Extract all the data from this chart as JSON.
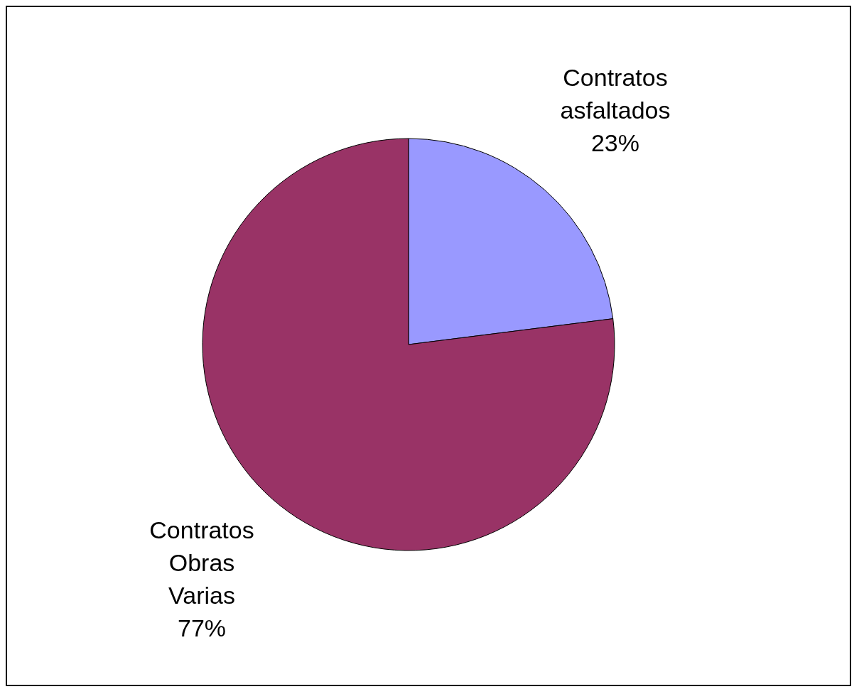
{
  "chart_data": {
    "type": "pie",
    "categories": [
      "Contratos asfaltados",
      "Contratos Obras Varias"
    ],
    "values": [
      23,
      77
    ],
    "colors": [
      "#9999ff",
      "#993366"
    ],
    "value_labels": [
      "23%",
      "77%"
    ],
    "legend": false
  }
}
